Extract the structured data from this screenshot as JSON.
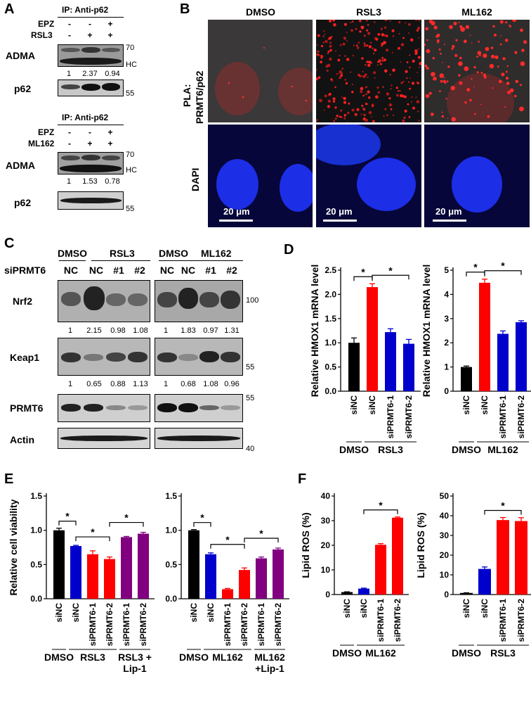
{
  "panels": {
    "A": {
      "label": "A",
      "blots": [
        {
          "ip_title": "IP: Anti-p62",
          "row_labels": [
            "EPZ",
            "RSL3"
          ],
          "signs": [
            [
              "-",
              "-",
              "+"
            ],
            [
              "-",
              "+",
              "+"
            ]
          ],
          "ladder_top": "70",
          "hc": "HC",
          "ladder_bottom": "55",
          "adma_label": "ADMA",
          "quant": [
            "1",
            "2.37",
            "0.94"
          ],
          "p62_label": "p62"
        },
        {
          "ip_title": "IP: Anti-p62",
          "row_labels": [
            "EPZ",
            "ML162"
          ],
          "signs": [
            [
              "-",
              "-",
              "+"
            ],
            [
              "-",
              "+",
              "+"
            ]
          ],
          "ladder_top": "70",
          "hc": "HC",
          "ladder_bottom": "55",
          "adma_label": "ADMA",
          "quant": [
            "1",
            "1.53",
            "0.78"
          ],
          "p62_label": "p62"
        }
      ]
    },
    "B": {
      "label": "B",
      "columns": [
        "DMSO",
        "RSL3",
        "ML162"
      ],
      "row1_label": "PLA:",
      "row1_label2": "PRMT6/p62",
      "row2_label": "DAPI",
      "scale_bar": "20 μm"
    },
    "C": {
      "label": "C",
      "groups": [
        "DMSO",
        "RSL3",
        "DMSO",
        "ML162"
      ],
      "si_label": "siPRMT6",
      "lanes": [
        "NC",
        "NC",
        "#1",
        "#2",
        "NC",
        "NC",
        "#1",
        "#2"
      ],
      "proteins": [
        "Nrf2",
        "Keap1",
        "PRMT6",
        "Actin"
      ],
      "markers": [
        "100",
        "55",
        "55",
        "40"
      ],
      "nrf2_quant": [
        "1",
        "2.15",
        "0.98",
        "1.08",
        "1",
        "1.83",
        "0.97",
        "1.31"
      ],
      "keap1_quant": [
        "1",
        "0.65",
        "0.88",
        "1.13",
        "1",
        "0.68",
        "1.08",
        "0.96"
      ]
    },
    "D": {
      "label": "D"
    },
    "E": {
      "label": "E"
    },
    "F": {
      "label": "F"
    }
  },
  "chart_data": [
    {
      "type": "bar",
      "panel": "D-left",
      "categories": [
        "siNC",
        "siNC",
        "siPRMT6-1",
        "siPRMT6-2"
      ],
      "values": [
        1.0,
        2.15,
        1.22,
        0.98
      ],
      "errors": [
        0.1,
        0.07,
        0.07,
        0.09
      ],
      "colors": [
        "#000000",
        "#ff0000",
        "#0000cc",
        "#0000cc"
      ],
      "ylabel": "Relative HMOX1 mRNA level",
      "ylim": [
        0,
        2.5
      ],
      "yticks": [
        "0.0",
        "0.5",
        "1.0",
        "1.5",
        "2.0",
        "2.5"
      ],
      "groups": [
        "DMSO",
        "RSL3"
      ],
      "sig": "*"
    },
    {
      "type": "bar",
      "panel": "D-right",
      "categories": [
        "siNC",
        "siNC",
        "siPRMT6-1",
        "siPRMT6-2"
      ],
      "values": [
        1.0,
        4.48,
        2.37,
        2.85
      ],
      "errors": [
        0.04,
        0.15,
        0.12,
        0.06
      ],
      "colors": [
        "#000000",
        "#ff0000",
        "#0000cc",
        "#0000cc"
      ],
      "ylabel": "Relative HMOX1 mRNA level",
      "ylim": [
        0,
        5
      ],
      "yticks": [
        "0",
        "1",
        "2",
        "3",
        "4",
        "5"
      ],
      "groups": [
        "DMSO",
        "ML162"
      ],
      "sig": "*"
    },
    {
      "type": "bar",
      "panel": "E-left",
      "categories": [
        "siNC",
        "siNC",
        "siPRMT6-1",
        "siPRMT6-2",
        "siPRMT6-1",
        "siPRMT6-2"
      ],
      "values": [
        1.0,
        0.77,
        0.65,
        0.58,
        0.9,
        0.95
      ],
      "errors": [
        0.03,
        0.01,
        0.05,
        0.03,
        0.01,
        0.02
      ],
      "colors": [
        "#000000",
        "#0000cc",
        "#ff0000",
        "#ff0000",
        "#800080",
        "#800080"
      ],
      "ylabel": "Relative cell viability",
      "ylim": [
        0,
        1.5
      ],
      "yticks": [
        "0.0",
        "0.5",
        "1.0",
        "1.5"
      ],
      "groups": [
        "DMSO",
        "RSL3",
        "RSL3 +",
        "Lip-1"
      ],
      "sig": "*"
    },
    {
      "type": "bar",
      "panel": "E-right",
      "categories": [
        "siNC",
        "siNC",
        "siPRMT6-1",
        "siPRMT6-2",
        "siPRMT6-1",
        "siPRMT6-2"
      ],
      "values": [
        1.0,
        0.65,
        0.14,
        0.42,
        0.59,
        0.72
      ],
      "errors": [
        0.01,
        0.02,
        0.01,
        0.03,
        0.02,
        0.02
      ],
      "colors": [
        "#000000",
        "#0000cc",
        "#ff0000",
        "#ff0000",
        "#800080",
        "#800080"
      ],
      "ylabel": "",
      "ylim": [
        0,
        1.5
      ],
      "yticks": [
        "0.0",
        "0.5",
        "1.0",
        "1.5"
      ],
      "groups": [
        "DMSO",
        "ML162",
        "ML162",
        "+Lip-1"
      ],
      "sig": "*"
    },
    {
      "type": "bar",
      "panel": "F-left",
      "categories": [
        "siNC",
        "siNC",
        "siPRMT6-1",
        "siPRMT6-2"
      ],
      "values": [
        1.0,
        2.4,
        20.2,
        31.2
      ],
      "errors": [
        0.1,
        0.2,
        0.5,
        0.3
      ],
      "colors": [
        "#000000",
        "#0000cc",
        "#ff0000",
        "#ff0000"
      ],
      "ylabel": "Lipid ROS (%)",
      "ylim": [
        0,
        40
      ],
      "yticks": [
        "0",
        "10",
        "20",
        "30",
        "40"
      ],
      "groups": [
        "DMSO",
        "ML162"
      ],
      "sig": "*"
    },
    {
      "type": "bar",
      "panel": "F-right",
      "categories": [
        "siNC",
        "siNC",
        "siPRMT6-1",
        "siPRMT6-2"
      ],
      "values": [
        0.8,
        13.0,
        37.8,
        37.3
      ],
      "errors": [
        0.1,
        1.0,
        1.3,
        1.7
      ],
      "colors": [
        "#000000",
        "#0000cc",
        "#ff0000",
        "#ff0000"
      ],
      "ylabel": "Lipid ROS (%)",
      "ylim": [
        0,
        50
      ],
      "yticks": [
        "0",
        "10",
        "20",
        "30",
        "40",
        "50"
      ],
      "groups": [
        "DMSO",
        "RSL3"
      ],
      "sig": "*"
    }
  ]
}
